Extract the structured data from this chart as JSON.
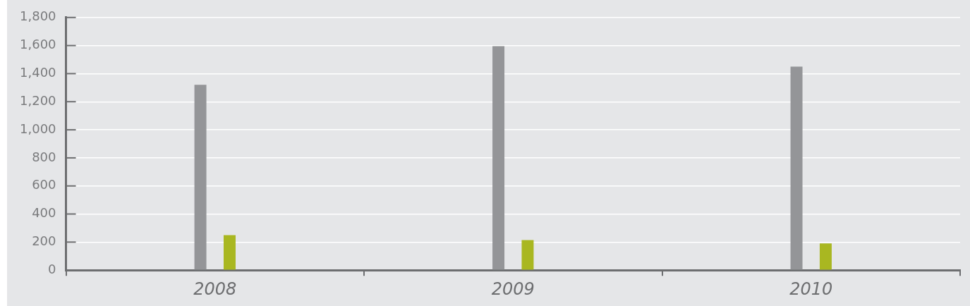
{
  "chart_data": {
    "type": "bar",
    "categories": [
      "2008",
      "2009",
      "2010"
    ],
    "series": [
      {
        "color": "#949598",
        "values": [
          1320,
          1595,
          1450
        ]
      },
      {
        "color": "#a9b721",
        "values": [
          250,
          215,
          190
        ]
      }
    ],
    "ylim": [
      0,
      1800
    ],
    "yticks": [
      0,
      {
        "value": 200,
        "label": "200"
      },
      {
        "value": 400,
        "label": "400"
      },
      {
        "value": 600,
        "label": "600"
      },
      {
        "value": 800,
        "label": "800"
      },
      {
        "value": 1000,
        "label": "1,000"
      },
      {
        "value": 1200,
        "label": "1,200"
      },
      {
        "value": 1400,
        "label": "1,400"
      },
      {
        "value": 1600,
        "label": "1,600"
      },
      {
        "value": 1800,
        "label": "1,800"
      }
    ],
    "grid": "y",
    "legend": false
  }
}
